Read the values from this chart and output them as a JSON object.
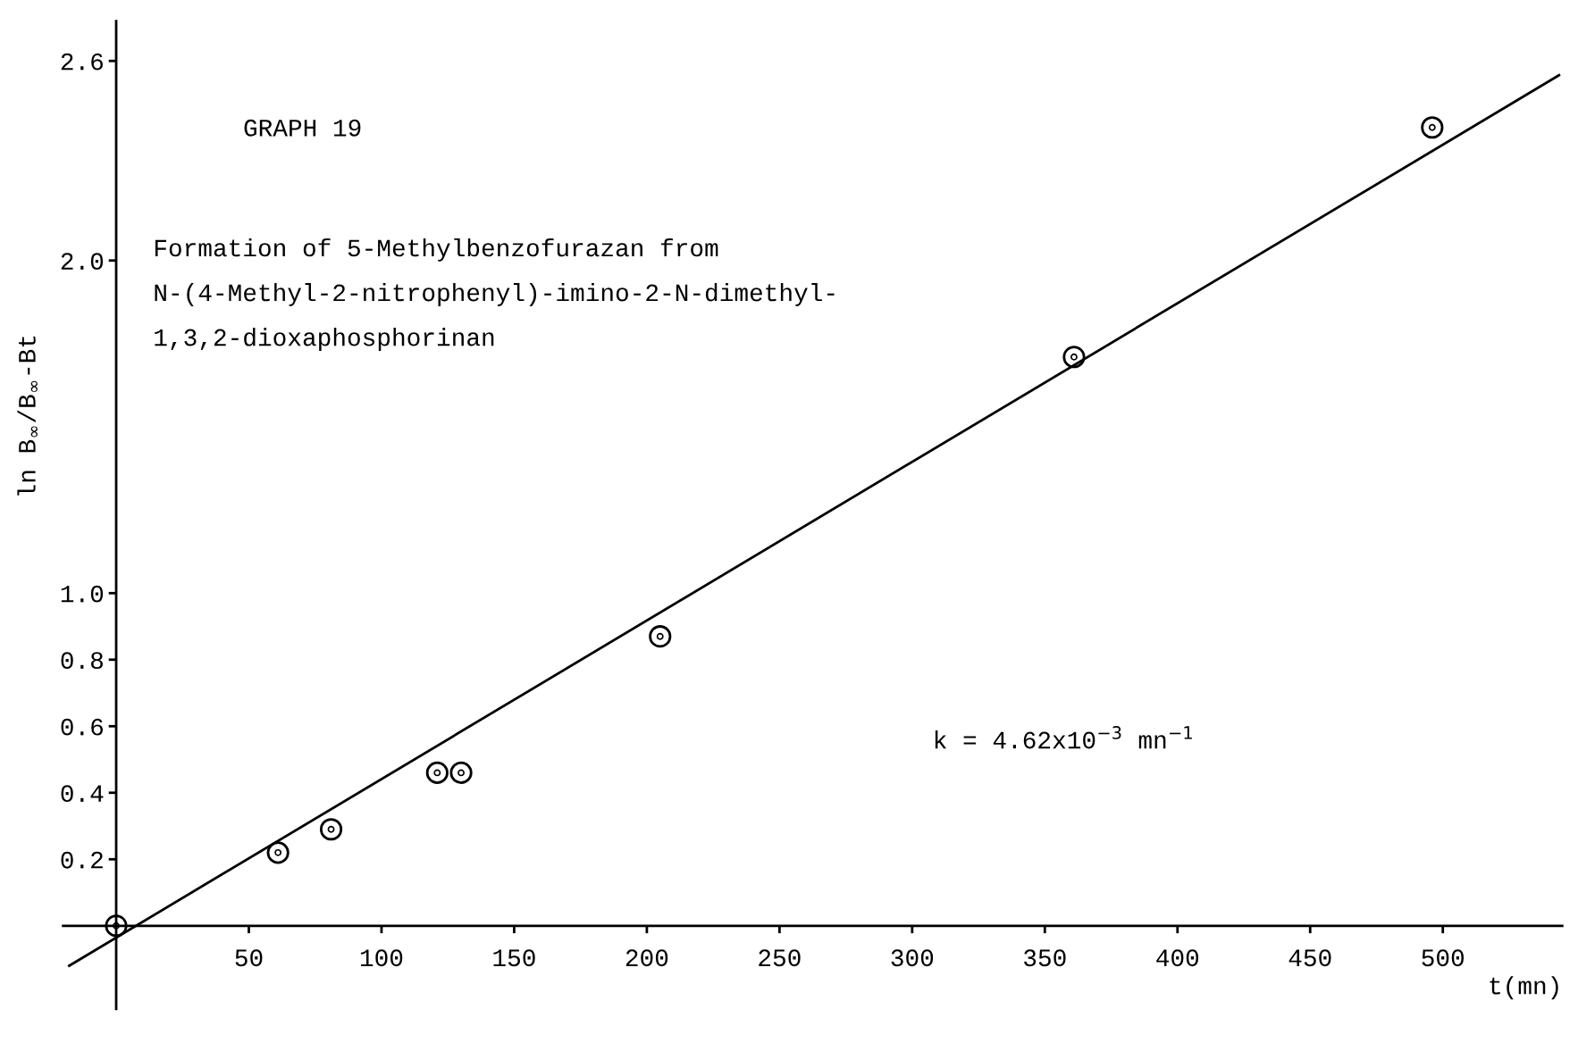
{
  "chart_data": {
    "type": "scatter",
    "title": "Formation of 5-Methylbenzofurazan from\nN-(4-Methyl-2-nitrophenyl)-imino-2-N-dimethyl-\n1,3,2-dioxaphosphorinan",
    "xlabel": "t(mn)",
    "ylabel": "ln B$_{∞}$/B$_{∞}$-Bt",
    "annotations": [
      "GRAPH 19",
      "k = 4.62x10$^{−3}$ mn$^{−1}$"
    ],
    "series": [
      {
        "color": "#000000",
        "marker": "circle",
        "x": [
          0,
          61,
          81,
          121,
          130,
          205,
          361,
          496
        ],
        "values": [
          0,
          0.22,
          0.29,
          0.46,
          0.46,
          0.87,
          1.71,
          2.4
        ]
      },
      {
        "type": "line",
        "color": "#000000",
        "line_style": "solid",
        "x": [
          -17.7,
          543.8
        ],
        "values": [
          -0.12,
          2.557
        ]
      }
    ],
    "xlim": [
      -20,
      545
    ],
    "ylim": [
      -0.25,
      2.72
    ],
    "xticks": [
      50,
      100,
      150,
      200,
      250,
      300,
      350,
      400,
      450,
      500
    ],
    "yticks": [
      0.2,
      0.4,
      0.6,
      0.8,
      {
        "value": 1,
        "label": "1.0"
      },
      {
        "value": 2,
        "label": "2.0"
      },
      2.6
    ],
    "grid": false,
    "legend": false
  }
}
